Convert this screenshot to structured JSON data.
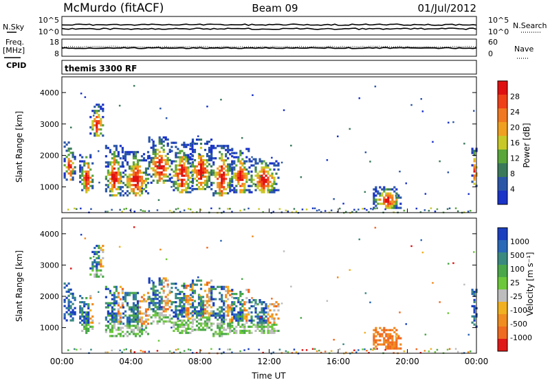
{
  "header": {
    "station": "McMurdo (fitACF)",
    "beam": "Beam 09",
    "date": "01/Jul/2012"
  },
  "left_labels": {
    "nsky": "N.Sky",
    "freq": "Freq.",
    "freq_unit": "[MHz]",
    "cpid": "CPID"
  },
  "right_labels": {
    "nsearch": "N.Search",
    "nave": "Nave"
  },
  "cpid_text": "themis 3300 RF",
  "colors": {
    "power": [
      "#1a33c8",
      "#2a56a8",
      "#3a7a5a",
      "#5aa63a",
      "#c8c828",
      "#f0a020",
      "#f07820",
      "#f04018",
      "#e01010"
    ],
    "velocity": [
      "#1a3fbf",
      "#2a68b8",
      "#3a8a80",
      "#4aa84a",
      "#6cc83a",
      "#bdbdbd",
      "#f0b020",
      "#f08c20",
      "#f06a20",
      "#e01818"
    ]
  },
  "chart_data": [
    {
      "panel": "noise",
      "type": "line",
      "ytick_labels_left": [
        "10^5",
        "10^0"
      ],
      "ytick_labels_right": [
        "10^5",
        "10^0"
      ]
    },
    {
      "panel": "frequency",
      "type": "line",
      "ytick_labels_left": [
        "18",
        "8"
      ],
      "ytick_labels_right": [
        "60",
        "0"
      ]
    },
    {
      "panel": "power",
      "type": "heatmap",
      "ylabel": "Slant Range [km]",
      "ylim": [
        180,
        4500
      ],
      "yticks": [
        1000,
        2000,
        3000,
        4000
      ],
      "xlim": [
        0,
        24
      ],
      "colorbar": {
        "label": "Power [dB]",
        "range": [
          0,
          32
        ],
        "ticks": [
          4,
          8,
          12,
          16,
          20,
          24,
          28
        ]
      }
    },
    {
      "panel": "velocity",
      "type": "heatmap",
      "ylabel": "Slant Range [km]",
      "xlabel": "Time UT",
      "ylim": [
        180,
        4500
      ],
      "yticks": [
        1000,
        2000,
        3000,
        4000
      ],
      "xlim": [
        0,
        24
      ],
      "xtick_labels": [
        "00:00",
        "04:00",
        "08:00",
        "12:00",
        "16:00",
        "20:00",
        "00:00"
      ],
      "colorbar": {
        "label": "Velocity [m s⁻¹]",
        "ticks": [
          "1000",
          "500",
          "100",
          "25",
          "-25",
          "-100",
          "-500",
          "-1000"
        ]
      },
      "echo_regions": [
        {
          "t_start": 0.1,
          "t_end": 0.7,
          "r_min": 1200,
          "r_max": 2400
        },
        {
          "t_start": 1.0,
          "t_end": 1.8,
          "r_min": 800,
          "r_max": 2100
        },
        {
          "t_start": 1.6,
          "t_end": 2.4,
          "r_min": 2600,
          "r_max": 3600
        },
        {
          "t_start": 2.5,
          "t_end": 3.5,
          "r_min": 700,
          "r_max": 2300
        },
        {
          "t_start": 3.5,
          "t_end": 5.0,
          "r_min": 700,
          "r_max": 2100
        },
        {
          "t_start": 5.0,
          "t_end": 6.3,
          "r_min": 1100,
          "r_max": 2600
        },
        {
          "t_start": 6.3,
          "t_end": 7.5,
          "r_min": 800,
          "r_max": 2400
        },
        {
          "t_start": 7.4,
          "t_end": 8.6,
          "r_min": 900,
          "r_max": 2500
        },
        {
          "t_start": 8.6,
          "t_end": 9.8,
          "r_min": 700,
          "r_max": 2300
        },
        {
          "t_start": 9.8,
          "t_end": 10.8,
          "r_min": 800,
          "r_max": 2200
        },
        {
          "t_start": 10.8,
          "t_end": 12.5,
          "r_min": 800,
          "r_max": 1900
        },
        {
          "t_start": 18.0,
          "t_end": 19.6,
          "r_min": 300,
          "r_max": 1000
        },
        {
          "t_start": 23.7,
          "t_end": 24.0,
          "r_min": 1000,
          "r_max": 2300
        }
      ]
    }
  ]
}
